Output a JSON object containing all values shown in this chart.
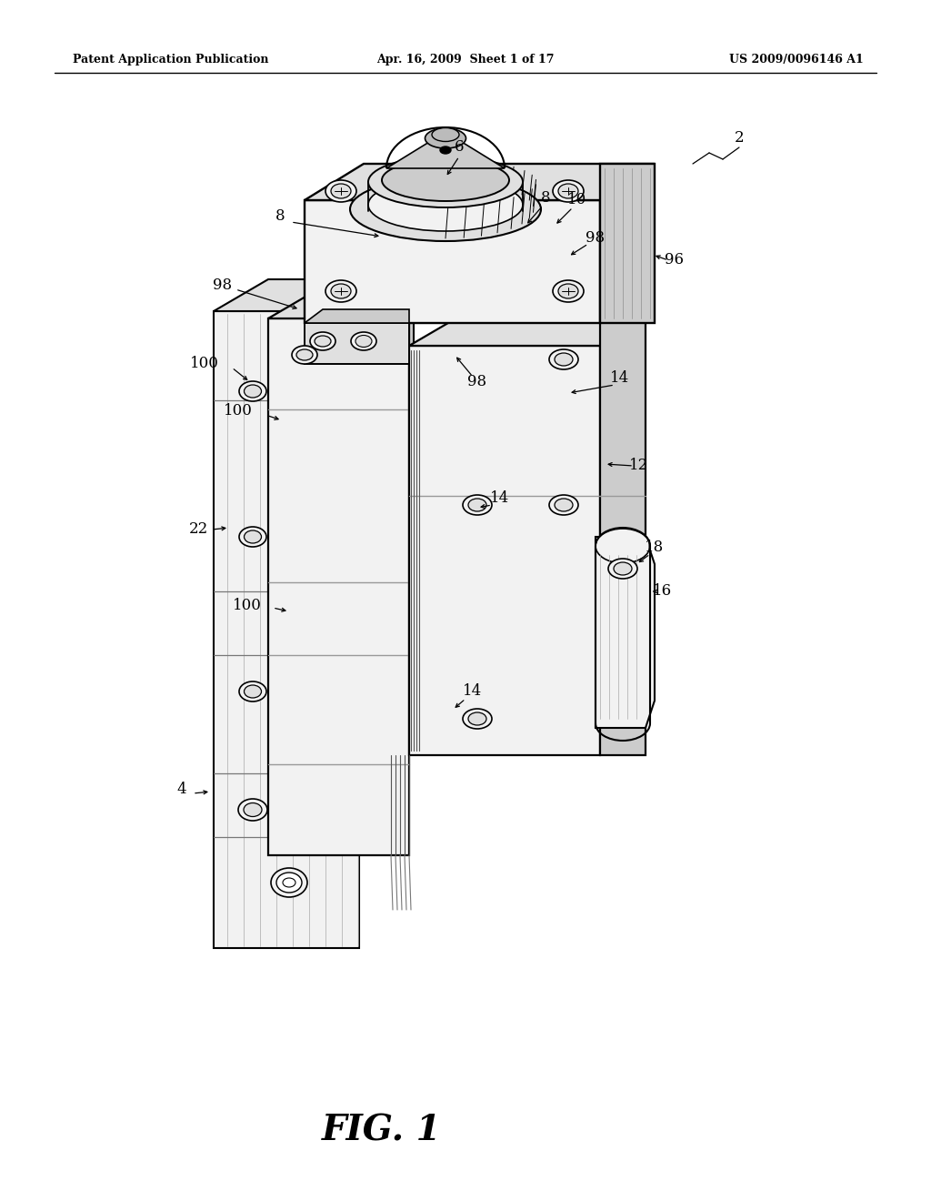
{
  "bg_color": "#ffffff",
  "line_color": "#000000",
  "header_left": "Patent Application Publication",
  "header_mid": "Apr. 16, 2009  Sheet 1 of 17",
  "header_right": "US 2009/0096146 A1",
  "figure_label": "FIG. 1",
  "line_gray": "#888888",
  "face_light": "#f2f2f2",
  "face_mid": "#e0e0e0",
  "face_dark": "#cccccc",
  "face_darker": "#bbbbbb"
}
